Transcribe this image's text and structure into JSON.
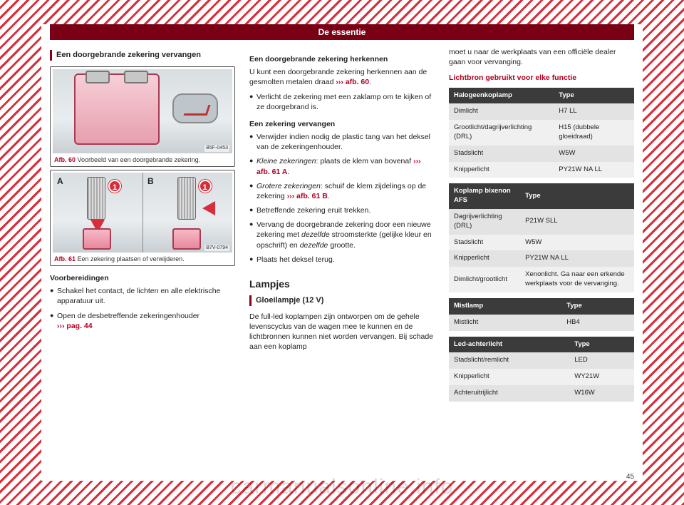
{
  "page": {
    "number": "45",
    "header": "De essentie",
    "watermark": "carmanualsonline.info"
  },
  "col1": {
    "title": "Een doorgebrande zekering vervangen",
    "fig60": {
      "code": "B5F-0453",
      "ref": "Afb. 60",
      "caption": "Voorbeeld van een doorgebrande zekering."
    },
    "fig61": {
      "code": "B7V-0794",
      "ref": "Afb. 61",
      "caption": "Een zekering plaatsen of verwijderen.",
      "labelA": "A",
      "labelB": "B",
      "tag": "1"
    },
    "prep_h": "Voorbereidingen",
    "prep_b1": "Schakel het contact, de lichten en alle elektrische apparatuur uit.",
    "prep_b2a": "Open de desbetreffende zekeringenhouder ",
    "prep_b2_ref": "››› pag. 44"
  },
  "col2": {
    "rec_h": "Een doorgebrande zekering herkennen",
    "rec_p1a": "U kunt een doorgebrande zekering herkennen aan de gesmolten metalen draad ",
    "rec_p1_ref": "››› afb. 60",
    "rec_p1b": ".",
    "rec_b1": "Verlicht de zekering met een zaklamp om te kijken of ze doorgebrand is.",
    "repl_h": "Een zekering vervangen",
    "repl_b1": "Verwijder indien nodig de plastic tang van het deksel van de zekeringenhouder.",
    "repl_b2a": "Kleine zekeringen",
    "repl_b2b": ": plaats de klem van bovenaf ",
    "repl_b2_ref": "››› afb. 61 A",
    "repl_b2c": ".",
    "repl_b3a": "Grotere zekeringen",
    "repl_b3b": ": schuif de klem zijdelings op de zekering ",
    "repl_b3_ref": "››› afb. 61 B",
    "repl_b3c": ".",
    "repl_b4": "Betreffende zekering eruit trekken.",
    "repl_b5a": "Vervang de doorgebrande zekering door een nieuwe zekering met ",
    "repl_b5b": "dezelfde",
    "repl_b5c": " stroomsterkte (gelijke kleur en opschrift) en ",
    "repl_b5d": "dezelfde",
    "repl_b5e": " grootte.",
    "repl_b6": "Plaats het deksel terug.",
    "lamp_h": "Lampjes",
    "bulb_h": "Gloeilampje (12 V)",
    "bulb_p": "De full-led koplampen zijn ontworpen om de gehele levenscyclus van de wagen mee te kunnen en de lichtbronnen kunnen niet worden vervangen. Bij schade aan een koplamp"
  },
  "col3": {
    "cont": "moet u naar de werkplaats van een officiële dealer gaan voor vervanging.",
    "tbl_h": "Lichtbron gebruikt voor elke functie",
    "t1": {
      "h1": "Halogeenkoplamp",
      "h2": "Type",
      "rows": [
        [
          "Dimlicht",
          "H7 LL"
        ],
        [
          "Grootlicht/dagrijverlichting (DRL)",
          "H15 (dubbele gloeidraad)"
        ],
        [
          "Stadslicht",
          "W5W"
        ],
        [
          "Knipperlicht",
          "PY21W NA LL"
        ]
      ]
    },
    "t2": {
      "h1": "Koplamp bixenon AFS",
      "h2": "Type",
      "rows": [
        [
          "Dagrijverlichting (DRL)",
          "P21W SLL"
        ],
        [
          "Stadslicht",
          "W5W"
        ],
        [
          "Knipperlicht",
          "PY21W NA LL"
        ],
        [
          "Dimlicht/grootlicht",
          "Xenonlicht. Ga naar een erkende werkplaats voor de vervanging."
        ]
      ]
    },
    "t3": {
      "h1": "Mistlamp",
      "h2": "Type",
      "rows": [
        [
          "Mistlicht",
          "HB4"
        ]
      ]
    },
    "t4": {
      "h1": "Led-achterlicht",
      "h2": "Type",
      "rows": [
        [
          "Stadslicht/remlicht",
          "LED"
        ],
        [
          "Knipperlicht",
          "WY21W"
        ],
        [
          "Achteruitrijlicht",
          "W16W"
        ]
      ]
    }
  }
}
